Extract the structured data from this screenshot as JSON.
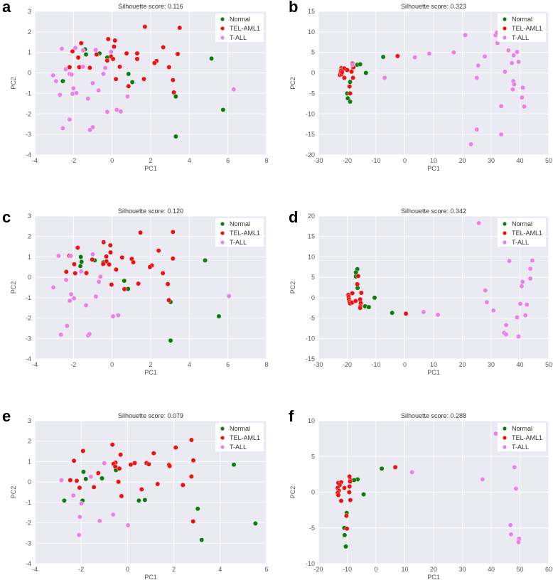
{
  "colors": {
    "Normal": "#0a7d0a",
    "TEL-AML1": "#ee1111",
    "T-ALL": "#ea80ea",
    "background": "#eaeaf2",
    "grid": "#ffffff"
  },
  "chart_data": [
    {
      "type": "scatter",
      "panel_label": "a",
      "title": "Silhouette score: 0.116",
      "xlabel": "PC1",
      "ylabel": "PC2",
      "xlim": [
        -4,
        8
      ],
      "ylim": [
        -4,
        3
      ],
      "xticks": [
        "-4",
        "-2",
        "0",
        "2",
        "4",
        "6",
        "8"
      ],
      "yticks": [
        "-4",
        "-3",
        "-2",
        "-1",
        "0",
        "1",
        "2",
        "3"
      ],
      "grid": true,
      "legend": "top-right",
      "series": [
        {
          "name": "Normal",
          "x": [
            -2.55,
            -1.4,
            -1.35,
            -0.65,
            -0.25,
            0.85,
            1.05,
            3.3,
            5.15,
            5.75,
            3.3
          ],
          "y": [
            -0.4,
            1.15,
            0.9,
            0.95,
            0.75,
            -0.05,
            -0.45,
            -1.15,
            0.7,
            -1.8,
            -3.1
          ]
        },
        {
          "name": "TEL-AML1",
          "x": [
            1.7,
            3.5,
            -0.2,
            0.15,
            -1.6,
            0.1,
            2.65,
            -2.05,
            0.75,
            1.3,
            3.4,
            -0.8,
            -0.05,
            -1.75,
            0.05,
            1.3,
            -0.25,
            2.3,
            2.2,
            -2.2,
            -1.7,
            -1.15,
            0.4,
            2.95,
            0.2,
            1.65,
            3.15,
            0.85,
            3.2
          ],
          "y": [
            2.25,
            2.2,
            1.65,
            1.58,
            1.45,
            1.28,
            1.25,
            1.05,
            0.95,
            0.95,
            0.92,
            0.9,
            0.8,
            0.75,
            0.68,
            0.68,
            0.6,
            0.58,
            0.48,
            0.28,
            0.28,
            0.25,
            0.3,
            0.28,
            -0.3,
            -0.3,
            -0.35,
            -0.65,
            -0.95
          ]
        },
        {
          "name": "T-ALL",
          "x": [
            -2.6,
            -1.9,
            -1.5,
            -0.85,
            -0.05,
            -2.4,
            -1.5,
            -0.35,
            -3.05,
            -2.2,
            -2.1,
            -0.45,
            -2.9,
            -1.0,
            -2.0,
            -0.7,
            -2.05,
            -1.85,
            -2.7,
            -1.25,
            0.8,
            6.3,
            -0.25,
            0.25,
            0.45,
            -2.2,
            -2.55,
            -1.0,
            -1.15
          ],
          "y": [
            1.18,
            1.22,
            1.1,
            1.12,
            1.03,
            0.18,
            0.3,
            0.25,
            -0.12,
            -0.05,
            -0.08,
            -0.05,
            -0.4,
            -0.5,
            -0.75,
            -0.85,
            -1.02,
            -0.98,
            -1.07,
            -1.25,
            -1.15,
            -0.8,
            -1.9,
            -1.8,
            -1.88,
            -2.27,
            -2.7,
            -2.65,
            -2.78
          ]
        }
      ]
    },
    {
      "type": "scatter",
      "panel_label": "b",
      "title": "Silhouette score: 0.323",
      "xlabel": "PC1",
      "ylabel": "PC2",
      "xlim": [
        -30,
        50
      ],
      "ylim": [
        -20,
        15
      ],
      "xticks": [
        "-30",
        "-20",
        "-10",
        "0",
        "10",
        "20",
        "30",
        "40",
        "50"
      ],
      "yticks": [
        "-20",
        "-15",
        "-10",
        "-5",
        "0",
        "5",
        "10",
        "15"
      ],
      "grid": true,
      "legend": "top-right",
      "series": [
        {
          "name": "Normal",
          "x": [
            -7.5,
            -16.5,
            -15.5,
            -13.5,
            -19,
            -20,
            -19.8,
            -19
          ],
          "y": [
            3.9,
            2,
            2.1,
            0,
            -2.2,
            -5,
            -6.2,
            -7
          ]
        },
        {
          "name": "TEL-AML1",
          "x": [
            -2.5,
            -18.2,
            -22,
            -21.5,
            -21,
            -22.2,
            -22.3,
            -22.5,
            -22,
            -21.8,
            -20,
            -21,
            -18.5,
            -18,
            -17.8,
            -18,
            -19.2,
            -19
          ],
          "y": [
            4.1,
            2.3,
            1.2,
            1,
            1.1,
            0.5,
            0,
            -0.5,
            -0.3,
            0.2,
            0.7,
            -1.2,
            0.3,
            1.3,
            1.4,
            -1.2,
            -3.3,
            -5
          ]
        },
        {
          "name": "T-ALL",
          "x": [
            -18.2,
            -7,
            3.5,
            8.5,
            17,
            21,
            31.5,
            32,
            32.2,
            36,
            39,
            37.8,
            27.8,
            25.5,
            37.2,
            39.5,
            34.8,
            25,
            37.7,
            38,
            37.5,
            41,
            40.7,
            33.5,
            41.5,
            25,
            33.5,
            23
          ],
          "y": [
            2,
            -1.2,
            3.8,
            4.7,
            5,
            9.2,
            9.2,
            9.8,
            7.3,
            5.5,
            5.1,
            4.3,
            4,
            1.8,
            2.4,
            2.7,
            0.3,
            -1.2,
            -2,
            -2.8,
            -4,
            -3.6,
            -6,
            -8.1,
            -8.2,
            -13.8,
            -15,
            -17.4
          ]
        }
      ]
    },
    {
      "type": "scatter",
      "panel_label": "c",
      "title": "Silhouette score: 0.120",
      "xlabel": "PC1",
      "ylabel": "PC2",
      "xlim": [
        -4,
        8
      ],
      "ylim": [
        -4,
        3
      ],
      "xticks": [
        "-4",
        "-2",
        "0",
        "2",
        "4",
        "6",
        "8"
      ],
      "yticks": [
        "-4",
        "-3",
        "-2",
        "-1",
        "0",
        "1",
        "2",
        "3"
      ],
      "grid": true,
      "legend": "top-right",
      "series": [
        {
          "name": "Normal",
          "x": [
            -1.62,
            -1.58,
            -1.64,
            -0.9,
            -0.45,
            0.63,
            0.83,
            3.03,
            4.82,
            5.53,
            3.03
          ],
          "y": [
            1.0,
            0.76,
            0.55,
            0.83,
            0.73,
            -0.17,
            -0.57,
            -1.21,
            0.83,
            -1.91,
            -3.1
          ]
        },
        {
          "name": "TEL-AML1",
          "x": [
            1.47,
            3.15,
            -0.44,
            -0.09,
            -1.78,
            2.41,
            -0.08,
            -2.21,
            -0.3,
            0.52,
            1.02,
            3.15,
            -1.03,
            -0.29,
            1.1,
            -1.96,
            -0.46,
            -0.15,
            2.06,
            1.96,
            0.21,
            -2.37,
            -1.91,
            -1.33,
            2.63,
            -0.03,
            1.36,
            2.89,
            0.64,
            2.94
          ],
          "y": [
            2.19,
            2.22,
            1.72,
            1.57,
            1.45,
            1.31,
            1.22,
            1.06,
            1.02,
            0.97,
            0.9,
            0.92,
            0.87,
            0.78,
            0.74,
            0.64,
            0.65,
            0.63,
            0.58,
            0.5,
            0.38,
            0.27,
            0.2,
            0.21,
            0.2,
            -0.36,
            -0.31,
            -0.33,
            -0.58,
            -1.12
          ]
        },
        {
          "name": "T-ALL",
          "x": [
            -2.77,
            -2.14,
            -1.0,
            -1.6,
            -0.6,
            -2.38,
            -0.68,
            -3.04,
            -2.12,
            -0.84,
            -1.97,
            -2.19,
            -1.35,
            6.06,
            0.05,
            0.32,
            -2.33,
            -2.65,
            -1.25,
            -1.17
          ],
          "y": [
            1.05,
            1.05,
            1.13,
            0.29,
            0.03,
            -0.13,
            -0.22,
            -0.5,
            -0.83,
            -0.94,
            -1.03,
            -1.15,
            -1.37,
            -0.92,
            -1.91,
            -1.86,
            -2.38,
            -2.81,
            -2.85,
            -2.78
          ]
        }
      ]
    },
    {
      "type": "scatter",
      "panel_label": "d",
      "title": "Silhouette score: 0.342",
      "xlabel": "PC1",
      "ylabel": "PC2",
      "xlim": [
        -30,
        50
      ],
      "ylim": [
        -15,
        20
      ],
      "xticks": [
        "-30",
        "-20",
        "-10",
        "0",
        "10",
        "20",
        "30",
        "40",
        "50"
      ],
      "yticks": [
        "-15",
        "-10",
        "-5",
        "0",
        "5",
        "10",
        "15",
        "20"
      ],
      "grid": true,
      "legend": "top-right",
      "series": [
        {
          "name": "Normal",
          "x": [
            -16.5,
            -17.0,
            -17.0,
            -16.4,
            -10.5,
            -13.8,
            -12.5,
            -4.4
          ],
          "y": [
            7.0,
            6.2,
            5.2,
            2.4,
            0.0,
            -2.1,
            -2.3,
            -3.7
          ]
        },
        {
          "name": "TEL-AML1",
          "x": [
            -16.2,
            -16.5,
            -15.1,
            -18.2,
            -19.6,
            -19.5,
            -19.4,
            -19.2,
            -19,
            -18.3,
            -17.1,
            -15.5,
            -15.3,
            -15.4,
            -15.5,
            0.4
          ],
          "y": [
            5.3,
            3.3,
            1.2,
            1.1,
            0.7,
            0.2,
            -0.4,
            -1.0,
            -1.4,
            -1.2,
            -0.8,
            -0.4,
            -1.3,
            -2.1,
            -2.5,
            -3.9
          ]
        },
        {
          "name": "T-ALL",
          "x": [
            25.7,
            36.3,
            44.3,
            43.6,
            43.6,
            40.9,
            40.6,
            28.0,
            28.5,
            40.1,
            42.4,
            30.8,
            6.5,
            11.5,
            41.9,
            39,
            35.2,
            34.5,
            35.2,
            39.5
          ],
          "y": [
            18.3,
            9.0,
            9.1,
            7.1,
            4.7,
            3.9,
            2.8,
            1.8,
            -1.1,
            -1.5,
            -1.7,
            -3.1,
            -3.5,
            -4.2,
            -4.3,
            -4.8,
            -6.7,
            -8.6,
            -9.0,
            -9.5
          ]
        }
      ]
    },
    {
      "type": "scatter",
      "panel_label": "e",
      "title": "Silhouette score: 0.079",
      "xlabel": "PC1",
      "ylabel": "PC2",
      "xlim": [
        -4,
        6
      ],
      "ylim": [
        -4,
        3
      ],
      "xticks": [
        "-4",
        "-2",
        "0",
        "2",
        "4",
        "6"
      ],
      "yticks": [
        "-4",
        "-3",
        "-2",
        "-1",
        "0",
        "1",
        "2",
        "3"
      ],
      "grid": true,
      "legend": "top-right",
      "series": [
        {
          "name": "Normal",
          "x": [
            -1.9,
            -1.8,
            -1.1,
            -0.5,
            -2.73,
            -1.94,
            0.49,
            0.75,
            4.59,
            3.03,
            5.52,
            3.2
          ],
          "y": [
            0.5,
            0.15,
            0.18,
            0.58,
            -0.91,
            -0.91,
            -0.91,
            -0.88,
            0.85,
            -1.31,
            -2.03,
            -2.84
          ]
        },
        {
          "name": "TEL-AML1",
          "x": [
            -0.65,
            -1.92,
            -2.31,
            2.76,
            2.08,
            1.13,
            -0.3,
            -0.52,
            -0.6,
            -0.53,
            0.14,
            0.31,
            0.82,
            0.92,
            1.79,
            1.82,
            2.84,
            -0.35,
            -1.26,
            2.76,
            -2.47,
            -2.19,
            -0.39,
            -2.07,
            -1.45,
            1.3,
            2.39,
            0.61,
            -0.26,
            2.83
          ],
          "y": [
            1.83,
            1.52,
            1.04,
            2.06,
            1.69,
            1.41,
            1.34,
            0.95,
            0.89,
            0.75,
            0.85,
            0.93,
            0.93,
            0.87,
            0.85,
            0.78,
            1.06,
            0.66,
            0.44,
            0.27,
            0.09,
            0.06,
            0.01,
            -0.28,
            -0.25,
            -0.1,
            -0.15,
            -0.36,
            -0.69,
            -1.93
          ]
        },
        {
          "name": "T-ALL",
          "x": [
            -1.0,
            -1.58,
            -2.85,
            -2.34,
            -1.99,
            -2.06,
            -1.2,
            -0.62,
            0.02,
            -2.09
          ],
          "y": [
            0.92,
            0.26,
            0.09,
            -0.66,
            -1.05,
            -1.71,
            -1.9,
            -1.6,
            -2.12,
            -2.59
          ]
        }
      ]
    },
    {
      "type": "scatter",
      "panel_label": "f",
      "title": "Silhouette score: 0.288",
      "xlabel": "PC1",
      "ylabel": "PC2",
      "xlim": [
        -20,
        60
      ],
      "ylim": [
        -10,
        10
      ],
      "xticks": [
        "-20",
        "-10",
        "0",
        "10",
        "20",
        "30",
        "40",
        "50",
        "60"
      ],
      "yticks": [
        "-10",
        "-5",
        "0",
        "5",
        "10"
      ],
      "grid": true,
      "legend": "top-right",
      "series": [
        {
          "name": "Normal",
          "x": [
            2.0,
            -6.4,
            -7.6,
            -4.3,
            -10.2,
            -11,
            -10.9,
            -10.5
          ],
          "y": [
            3.3,
            1.8,
            1.7,
            -0.3,
            -2.9,
            -5.0,
            -6.0,
            -7.6
          ]
        },
        {
          "name": "TEL-AML1",
          "x": [
            6.7,
            -9.2,
            -8.9,
            -9,
            -13.1,
            -12.1,
            -12.6,
            -13.3,
            -12.9,
            -13.3,
            -13.1,
            -11,
            -9.2,
            -9.3,
            -12.1,
            -8.9,
            -10.3,
            -10.1
          ],
          "y": [
            3.5,
            2.2,
            1.7,
            1.5,
            1.3,
            1.4,
            1.0,
            0.6,
            0.2,
            -0.1,
            -0.4,
            0.6,
            0.8,
            0,
            -1.2,
            -1.1,
            -3.3,
            -5.1
          ]
        },
        {
          "name": "T-ALL",
          "x": [
            41.6,
            12.5,
            37,
            48.1,
            48.6,
            46.7,
            46.9,
            49.7,
            49.5
          ],
          "y": [
            8.2,
            2.8,
            1.8,
            3.5,
            0.5,
            -4.6,
            -5.9,
            -6.5,
            -7.0
          ]
        }
      ]
    }
  ]
}
